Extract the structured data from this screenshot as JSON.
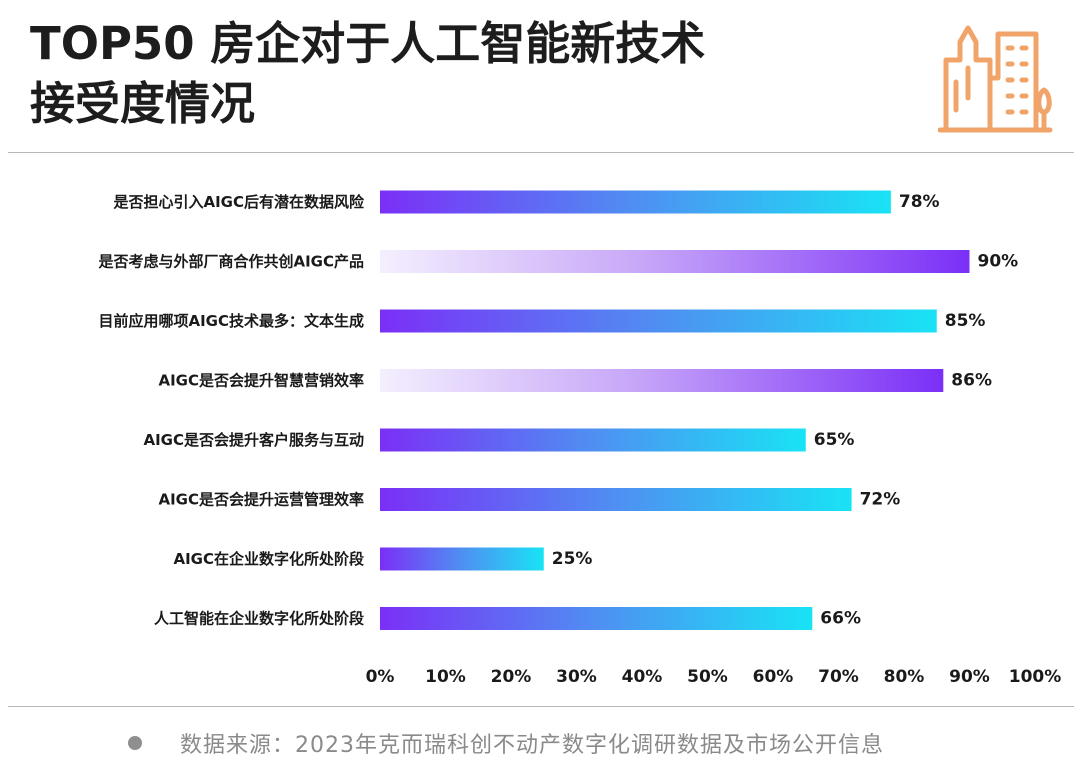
{
  "title": {
    "line1": "TOP50 房企对于人工智能新技术",
    "line2": "接受度情况"
  },
  "icon": "building-icon",
  "colors": {
    "bar_purple": "#7b2ff7",
    "bar_cyan": "#19e3f5",
    "bar_light": "#f1eafd",
    "icon_orange": "#f0a46a"
  },
  "chart_data": {
    "type": "bar",
    "orientation": "horizontal",
    "categories": [
      "是否担心引入AIGC后有潜在数据风险",
      "是否考虑与外部厂商合作共创AIGC产品",
      "目前应用哪项AIGC技术最多：文本生成",
      "AIGC是否会提升智慧营销效率",
      "AIGC是否会提升客户服务与互动",
      "AIGC是否会提升运营管理效率",
      "AIGC在企业数字化所处阶段",
      "人工智能在企业数字化所处阶段"
    ],
    "values": [
      78,
      90,
      85,
      86,
      65,
      72,
      25,
      66
    ],
    "value_labels": [
      "78%",
      "90%",
      "85%",
      "86%",
      "65%",
      "72%",
      "25%",
      "66%"
    ],
    "gradient": [
      "purple-to-cyan",
      "light-to-purple",
      "purple-to-cyan",
      "light-to-purple",
      "purple-to-cyan",
      "purple-to-cyan",
      "purple-to-cyan",
      "purple-to-cyan"
    ],
    "xlim": [
      0,
      100
    ],
    "xticks": [
      "0%",
      "10%",
      "20%",
      "30%",
      "40%",
      "50%",
      "60%",
      "70%",
      "80%",
      "90%",
      "100%"
    ],
    "grid": false
  },
  "footer": {
    "source": "数据来源：2023年克而瑞科创不动产数字化调研数据及市场公开信息"
  }
}
